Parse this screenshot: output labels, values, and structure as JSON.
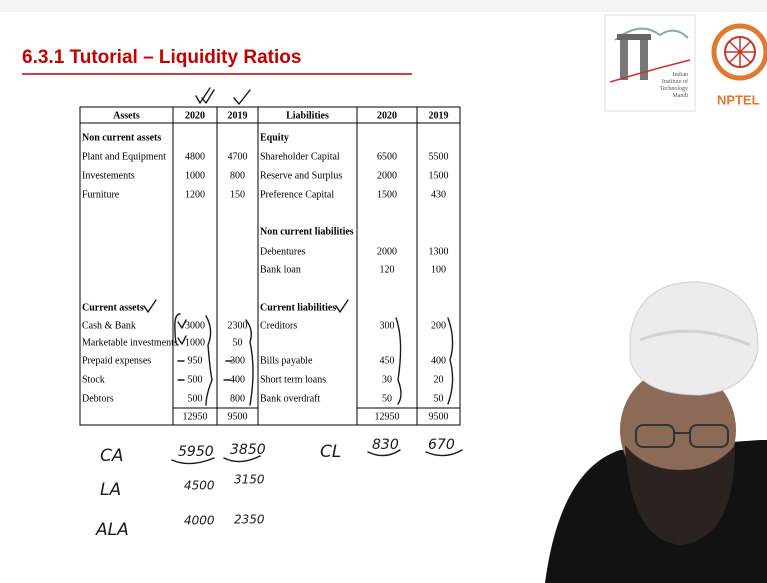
{
  "header": {
    "title": "6.3.1 Tutorial – Liquidity Ratios",
    "logo_text": [
      "Indian",
      "Institute of",
      "Technology",
      "Mandi"
    ],
    "nptel": "NPTEL"
  },
  "table": {
    "columns": [
      "Assets",
      "2020",
      "2019",
      "Liabilities",
      "2020",
      "2019"
    ],
    "rows": [
      [
        "Non current assets",
        null,
        null,
        "Equity",
        null,
        null
      ],
      [
        "Plant and Equipment",
        4800,
        4700,
        "Shareholder Capital",
        6500,
        5500
      ],
      [
        "Investements",
        1000,
        800,
        "Reserve and Surplus",
        2000,
        1500
      ],
      [
        "Furniture",
        1200,
        150,
        "Preference Capital",
        1500,
        430
      ],
      [
        null,
        null,
        null,
        null,
        null,
        null
      ],
      [
        null,
        null,
        null,
        "Non current liabilities",
        null,
        null
      ],
      [
        null,
        null,
        null,
        "Debentures",
        2000,
        1300
      ],
      [
        null,
        null,
        null,
        "Bank loan",
        120,
        100
      ],
      [
        null,
        null,
        null,
        null,
        null,
        null
      ],
      [
        "Current assets",
        null,
        null,
        "Current liabilities",
        null,
        null
      ],
      [
        "Cash & Bank",
        3000,
        2300,
        "Creditors",
        300,
        200
      ],
      [
        "Marketable investments",
        1000,
        50,
        null,
        null,
        null
      ],
      [
        "Prepaid expenses",
        950,
        300,
        "Bills payable",
        450,
        400
      ],
      [
        "Stock",
        500,
        400,
        "Short term loans",
        30,
        20
      ],
      [
        "Debtors",
        500,
        800,
        "Bank overdraft",
        50,
        50
      ]
    ],
    "totals": [
      null,
      12950,
      9500,
      null,
      12950,
      9500
    ]
  },
  "notes": {
    "rows": [
      {
        "label": "CA",
        "values": [
          "5950",
          "3850"
        ]
      },
      {
        "label": "LA",
        "values": [
          "4500",
          "3150"
        ]
      },
      {
        "label": "ALA",
        "values": [
          "4000",
          "2350"
        ]
      }
    ],
    "cl": {
      "label": "CL",
      "values": [
        "830",
        "670"
      ]
    }
  }
}
